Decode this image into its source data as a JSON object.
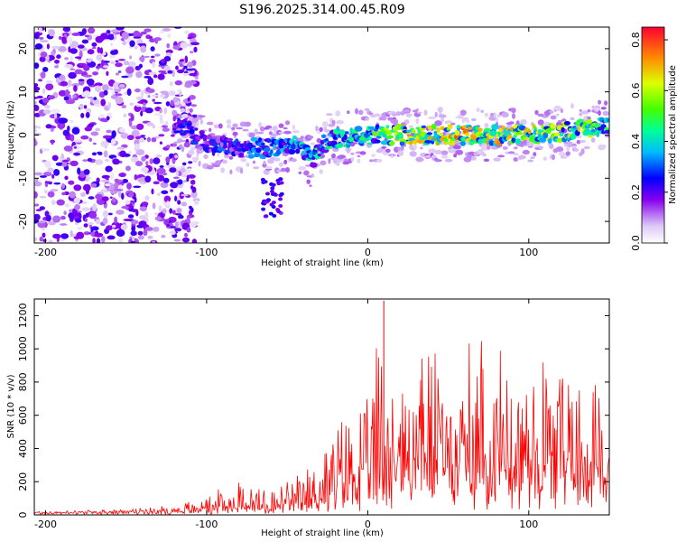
{
  "figure_title": "S196.2025.314.00.45.R09",
  "chart_data": [
    {
      "type": "heatmap",
      "title": "S196.2025.314.00.45.R09",
      "xlabel": "Height of straight line (km)",
      "ylabel": "Frequency (Hz)",
      "xlim": [
        -207,
        150
      ],
      "ylim": [
        -25,
        25
      ],
      "xticks": [
        -200,
        -100,
        0,
        100
      ],
      "yticks": [
        -20,
        -10,
        0,
        10,
        20
      ],
      "colorbar": {
        "label": "Normalized spectral amplitude",
        "range": [
          0,
          0.85
        ],
        "ticks": [
          "0.0",
          "0.2",
          "0.4",
          "0.6",
          "0.8"
        ]
      },
      "ridge_center_hz": [
        {
          "x": -120,
          "y": 3
        },
        {
          "x": -100,
          "y": -2
        },
        {
          "x": -80,
          "y": -3
        },
        {
          "x": -60,
          "y": -3
        },
        {
          "x": -45,
          "y": -2
        },
        {
          "x": -35,
          "y": -6
        },
        {
          "x": -25,
          "y": -1
        },
        {
          "x": 0,
          "y": 0
        },
        {
          "x": 50,
          "y": 0
        },
        {
          "x": 100,
          "y": 0
        },
        {
          "x": 150,
          "y": 2
        }
      ],
      "ridge_peak_amplitude": [
        {
          "x": -120,
          "y": 0.3
        },
        {
          "x": -100,
          "y": 0.3
        },
        {
          "x": -50,
          "y": 0.4
        },
        {
          "x": -25,
          "y": 0.5
        },
        {
          "x": 0,
          "y": 0.5
        },
        {
          "x": 20,
          "y": 0.7
        },
        {
          "x": 50,
          "y": 0.8
        },
        {
          "x": 80,
          "y": 0.75
        },
        {
          "x": 130,
          "y": 0.7
        },
        {
          "x": 150,
          "y": 0.5
        }
      ],
      "noise_region_x": [
        -207,
        -112
      ]
    },
    {
      "type": "line",
      "xlabel": "Height of straight line (km)",
      "ylabel": "SNR (10 * v/v)",
      "xlim": [
        -207,
        150
      ],
      "ylim": [
        0,
        1300
      ],
      "xticks": [
        -200,
        -100,
        0,
        100
      ],
      "yticks": [
        0,
        200,
        400,
        600,
        800,
        1000,
        1200
      ],
      "color": "#ff0000",
      "series": [
        {
          "name": "SNR",
          "envelope": [
            {
              "x": -207,
              "baseline": 10,
              "peak": 25
            },
            {
              "x": -150,
              "baseline": 15,
              "peak": 30
            },
            {
              "x": -120,
              "baseline": 20,
              "peak": 60
            },
            {
              "x": -100,
              "baseline": 30,
              "peak": 110
            },
            {
              "x": -80,
              "baseline": 40,
              "peak": 230
            },
            {
              "x": -60,
              "baseline": 30,
              "peak": 170
            },
            {
              "x": -40,
              "baseline": 60,
              "peak": 250
            },
            {
              "x": -25,
              "baseline": 100,
              "peak": 500
            },
            {
              "x": -10,
              "baseline": 180,
              "peak": 650
            },
            {
              "x": 0,
              "baseline": 220,
              "peak": 700
            },
            {
              "x": 10,
              "baseline": 250,
              "peak": 1290
            },
            {
              "x": 20,
              "baseline": 250,
              "peak": 800
            },
            {
              "x": 35,
              "baseline": 280,
              "peak": 1050
            },
            {
              "x": 50,
              "baseline": 280,
              "peak": 1000
            },
            {
              "x": 70,
              "baseline": 260,
              "peak": 1050
            },
            {
              "x": 90,
              "baseline": 250,
              "peak": 950
            },
            {
              "x": 110,
              "baseline": 250,
              "peak": 1150
            },
            {
              "x": 125,
              "baseline": 230,
              "peak": 1000
            },
            {
              "x": 140,
              "baseline": 220,
              "peak": 950
            },
            {
              "x": 150,
              "baseline": 180,
              "peak": 700
            }
          ]
        }
      ]
    }
  ]
}
